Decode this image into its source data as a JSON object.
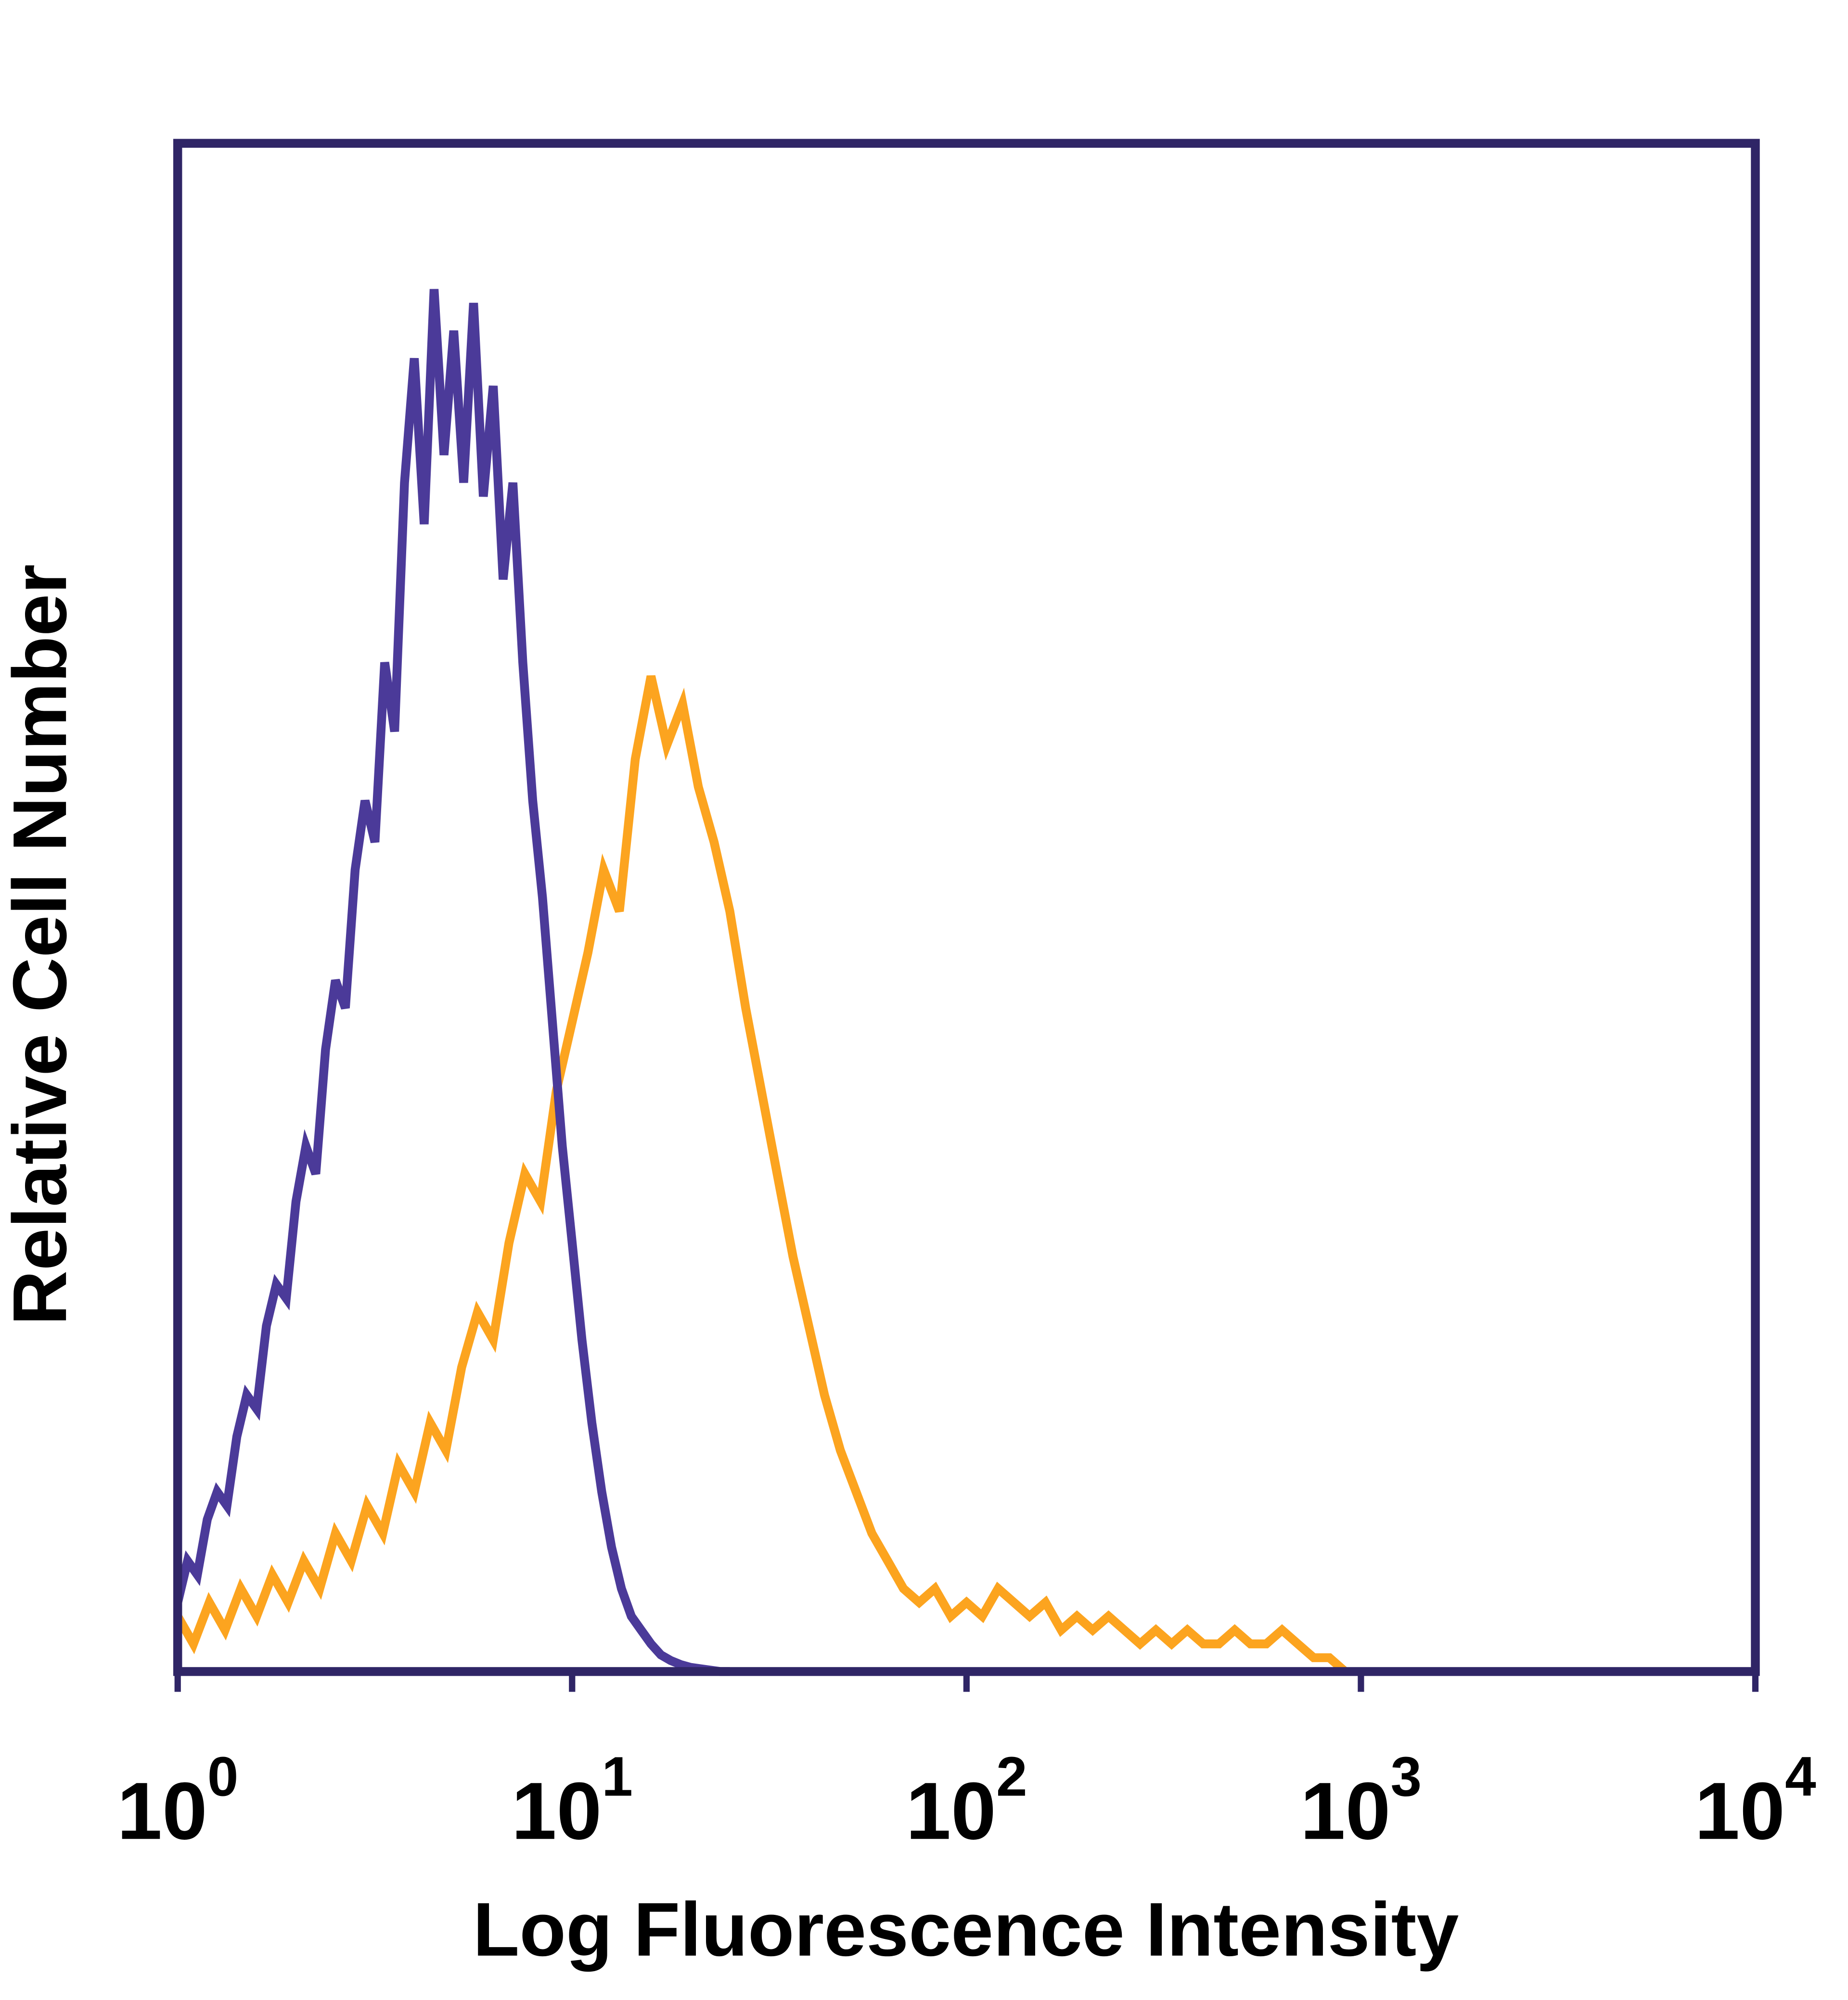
{
  "figure": {
    "background": "#ffffff",
    "frame_color": "#2f2566",
    "text_color": "#000000"
  },
  "chart_data": {
    "type": "line",
    "subtype": "flow-cytometry-histogram-overlay",
    "title": "",
    "xlabel": "Log Fluorescence Intensity",
    "ylabel": "Relative Cell Number",
    "x_scale": "log10",
    "x_log_range": [
      0,
      4
    ],
    "x_tick_base": "10",
    "x_tick_exponents": [
      0,
      1,
      2,
      3,
      4
    ],
    "x_tick_labels": [
      "10^0",
      "10^1",
      "10^2",
      "10^3",
      "10^4"
    ],
    "ylim": [
      0,
      1
    ],
    "y_ticks_shown": false,
    "grid": false,
    "legend": "none",
    "frame_color": "#2f2566",
    "series": [
      {
        "name": "orange",
        "color": "#FCA41F",
        "peak_logx": 1.2,
        "peak_x": 16,
        "peak_relative_height": 0.72,
        "points": [
          [
            0.0,
            0.04
          ],
          [
            0.04,
            0.02
          ],
          [
            0.08,
            0.05
          ],
          [
            0.12,
            0.03
          ],
          [
            0.16,
            0.06
          ],
          [
            0.2,
            0.04
          ],
          [
            0.24,
            0.07
          ],
          [
            0.28,
            0.05
          ],
          [
            0.32,
            0.08
          ],
          [
            0.36,
            0.06
          ],
          [
            0.4,
            0.1
          ],
          [
            0.44,
            0.08
          ],
          [
            0.48,
            0.12
          ],
          [
            0.52,
            0.1
          ],
          [
            0.56,
            0.15
          ],
          [
            0.6,
            0.13
          ],
          [
            0.64,
            0.18
          ],
          [
            0.68,
            0.16
          ],
          [
            0.72,
            0.22
          ],
          [
            0.76,
            0.26
          ],
          [
            0.8,
            0.24
          ],
          [
            0.84,
            0.31
          ],
          [
            0.88,
            0.36
          ],
          [
            0.92,
            0.34
          ],
          [
            0.96,
            0.42
          ],
          [
            1.0,
            0.47
          ],
          [
            1.04,
            0.52
          ],
          [
            1.08,
            0.58
          ],
          [
            1.12,
            0.55
          ],
          [
            1.16,
            0.66
          ],
          [
            1.2,
            0.72
          ],
          [
            1.24,
            0.67
          ],
          [
            1.28,
            0.7
          ],
          [
            1.32,
            0.64
          ],
          [
            1.36,
            0.6
          ],
          [
            1.4,
            0.55
          ],
          [
            1.44,
            0.48
          ],
          [
            1.48,
            0.42
          ],
          [
            1.52,
            0.36
          ],
          [
            1.56,
            0.3
          ],
          [
            1.6,
            0.25
          ],
          [
            1.64,
            0.2
          ],
          [
            1.68,
            0.16
          ],
          [
            1.72,
            0.13
          ],
          [
            1.76,
            0.1
          ],
          [
            1.8,
            0.08
          ],
          [
            1.84,
            0.06
          ],
          [
            1.88,
            0.05
          ],
          [
            1.92,
            0.06
          ],
          [
            1.96,
            0.04
          ],
          [
            2.0,
            0.05
          ],
          [
            2.04,
            0.04
          ],
          [
            2.08,
            0.06
          ],
          [
            2.12,
            0.05
          ],
          [
            2.16,
            0.04
          ],
          [
            2.2,
            0.05
          ],
          [
            2.24,
            0.03
          ],
          [
            2.28,
            0.04
          ],
          [
            2.32,
            0.03
          ],
          [
            2.36,
            0.04
          ],
          [
            2.4,
            0.03
          ],
          [
            2.44,
            0.02
          ],
          [
            2.48,
            0.03
          ],
          [
            2.52,
            0.02
          ],
          [
            2.56,
            0.03
          ],
          [
            2.6,
            0.02
          ],
          [
            2.64,
            0.02
          ],
          [
            2.68,
            0.03
          ],
          [
            2.72,
            0.02
          ],
          [
            2.76,
            0.02
          ],
          [
            2.8,
            0.03
          ],
          [
            2.84,
            0.02
          ],
          [
            2.88,
            0.01
          ],
          [
            2.92,
            0.01
          ],
          [
            2.96,
            0.0
          ]
        ]
      },
      {
        "name": "purple",
        "color": "#4B3A99",
        "peak_logx": 0.68,
        "peak_x": 4.8,
        "peak_relative_height": 1.0,
        "points": [
          [
            0.0,
            0.05
          ],
          [
            0.025,
            0.08
          ],
          [
            0.05,
            0.07
          ],
          [
            0.075,
            0.11
          ],
          [
            0.1,
            0.13
          ],
          [
            0.125,
            0.12
          ],
          [
            0.15,
            0.17
          ],
          [
            0.175,
            0.2
          ],
          [
            0.2,
            0.19
          ],
          [
            0.225,
            0.25
          ],
          [
            0.25,
            0.28
          ],
          [
            0.275,
            0.27
          ],
          [
            0.3,
            0.34
          ],
          [
            0.325,
            0.38
          ],
          [
            0.35,
            0.36
          ],
          [
            0.375,
            0.45
          ],
          [
            0.4,
            0.5
          ],
          [
            0.425,
            0.48
          ],
          [
            0.45,
            0.58
          ],
          [
            0.475,
            0.63
          ],
          [
            0.5,
            0.6
          ],
          [
            0.525,
            0.73
          ],
          [
            0.55,
            0.68
          ],
          [
            0.575,
            0.86
          ],
          [
            0.6,
            0.95
          ],
          [
            0.625,
            0.83
          ],
          [
            0.65,
            1.0
          ],
          [
            0.675,
            0.88
          ],
          [
            0.7,
            0.97
          ],
          [
            0.725,
            0.86
          ],
          [
            0.75,
            0.99
          ],
          [
            0.775,
            0.85
          ],
          [
            0.8,
            0.93
          ],
          [
            0.825,
            0.79
          ],
          [
            0.85,
            0.86
          ],
          [
            0.875,
            0.73
          ],
          [
            0.9,
            0.63
          ],
          [
            0.925,
            0.56
          ],
          [
            0.95,
            0.47
          ],
          [
            0.975,
            0.38
          ],
          [
            1.0,
            0.31
          ],
          [
            1.025,
            0.24
          ],
          [
            1.05,
            0.18
          ],
          [
            1.075,
            0.13
          ],
          [
            1.1,
            0.09
          ],
          [
            1.125,
            0.06
          ],
          [
            1.15,
            0.04
          ],
          [
            1.175,
            0.03
          ],
          [
            1.2,
            0.02
          ],
          [
            1.225,
            0.012
          ],
          [
            1.25,
            0.008
          ],
          [
            1.275,
            0.005
          ],
          [
            1.3,
            0.003
          ],
          [
            1.325,
            0.002
          ],
          [
            1.35,
            0.001
          ],
          [
            1.375,
            0.0
          ],
          [
            1.4,
            0.0
          ]
        ]
      }
    ]
  }
}
